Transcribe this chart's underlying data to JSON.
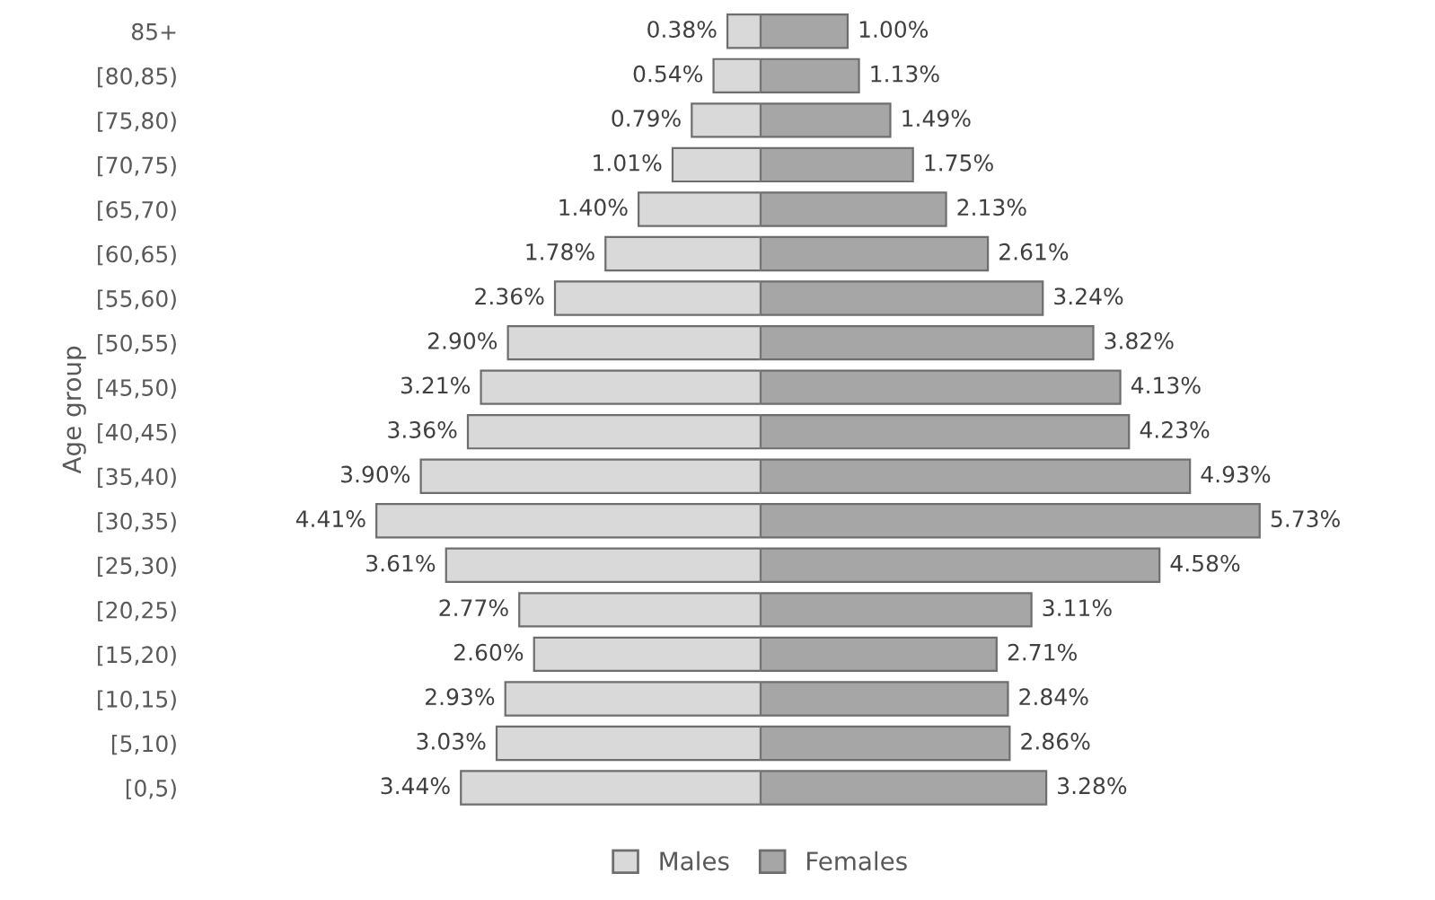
{
  "chart_data": [
    {
      "type": "bar",
      "orientation": "horizontal",
      "ylabel": "Age group",
      "tick_labels": "y",
      "legend": "bottom",
      "categories": [
        "85+",
        "[80,85)",
        "[75,80)",
        "[70,75)",
        "[65,70)",
        "[60,65)",
        "[55,60)",
        "[50,55)",
        "[45,50)",
        "[40,45)",
        "[35,40)",
        "[30,35)",
        "[25,30)",
        "[20,25)",
        "[15,20)",
        "[10,15)",
        "[5,10)",
        "[0,5)"
      ],
      "series": [
        {
          "name": "Males",
          "color": "#d9d9d9",
          "values": [
            0.38,
            0.54,
            0.79,
            1.01,
            1.4,
            1.78,
            2.36,
            2.9,
            3.21,
            3.36,
            3.9,
            4.41,
            3.61,
            2.77,
            2.6,
            2.93,
            3.03,
            3.44
          ],
          "value_labels": [
            "0.38%",
            "0.54%",
            "0.79%",
            "1.01%",
            "1.40%",
            "1.78%",
            "2.36%",
            "2.90%",
            "3.21%",
            "3.36%",
            "3.90%",
            "4.41%",
            "3.61%",
            "2.77%",
            "2.60%",
            "2.93%",
            "3.03%",
            "3.44%"
          ]
        }
      ]
    },
    {
      "type": "bar",
      "orientation": "horizontal",
      "tick_labels": false,
      "legend": "bottom",
      "categories": [
        null,
        null,
        null,
        null,
        null,
        null,
        null,
        null,
        null,
        null,
        null,
        null,
        null,
        null,
        null,
        null,
        null,
        null
      ],
      "series": [
        {
          "name": "Females",
          "color": "#a6a6a6",
          "values": [
            1.0,
            1.13,
            1.49,
            1.75,
            2.13,
            2.61,
            3.24,
            3.82,
            4.13,
            4.23,
            4.93,
            5.73,
            4.58,
            3.11,
            2.71,
            2.84,
            2.86,
            3.28
          ],
          "value_labels": [
            "1.00%",
            "1.13%",
            "1.49%",
            "1.75%",
            "2.13%",
            "2.61%",
            "3.24%",
            "3.82%",
            "4.13%",
            "4.23%",
            "4.93%",
            "5.73%",
            "4.58%",
            "3.11%",
            "2.71%",
            "2.84%",
            "2.86%",
            "3.28%"
          ]
        }
      ]
    }
  ]
}
